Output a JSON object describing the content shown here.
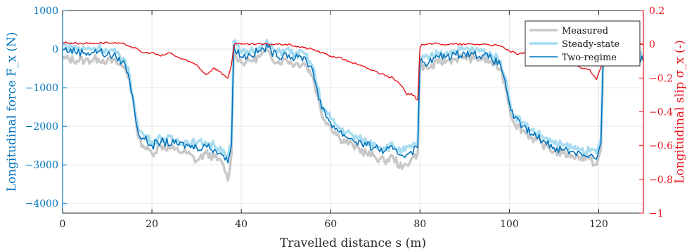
{
  "chart_data": {
    "type": "line",
    "xlabel": "Travelled distance s (m)",
    "ylabel_left": "Longitudinal force F_x (N)",
    "ylabel_right": "Longitudinal slip σ_x (-)",
    "xlim": [
      0,
      130
    ],
    "ylim_left": [
      -4250,
      1000
    ],
    "ylim_right": [
      -1,
      0.2
    ],
    "xticks": [
      0,
      20,
      40,
      60,
      80,
      100,
      120
    ],
    "yticks_left": [
      1000,
      0,
      -1000,
      -2000,
      -3000,
      -4000
    ],
    "yticks_right": [
      0.2,
      0,
      -0.2,
      -0.4,
      -0.6,
      -0.8,
      -1
    ],
    "grid": true,
    "legend_position": "top-right",
    "colors": {
      "measured": "#c8c8c8",
      "steady_state": "#a8dcf0",
      "two_regime": "#0072bd",
      "slip": "#e8141e",
      "left_axis": "#0072bd",
      "right_axis": "#e8141e"
    },
    "series": [
      {
        "name": "Measured",
        "axis": "left",
        "points": [
          [
            0,
            -250
          ],
          [
            5,
            -300
          ],
          [
            8,
            -250
          ],
          [
            10,
            -300
          ],
          [
            12,
            -350
          ],
          [
            14,
            -500
          ],
          [
            15,
            -800
          ],
          [
            16,
            -1500
          ],
          [
            17,
            -2300
          ],
          [
            18,
            -2500
          ],
          [
            20,
            -2700
          ],
          [
            22,
            -2500
          ],
          [
            25,
            -2600
          ],
          [
            28,
            -2700
          ],
          [
            30,
            -2900
          ],
          [
            32,
            -2700
          ],
          [
            34,
            -2800
          ],
          [
            36,
            -3000
          ],
          [
            37,
            -3400
          ],
          [
            37.8,
            -2700
          ],
          [
            38.3,
            -50
          ],
          [
            40,
            -350
          ],
          [
            42,
            -300
          ],
          [
            44,
            -200
          ],
          [
            46,
            -50
          ],
          [
            48,
            -350
          ],
          [
            50,
            -250
          ],
          [
            52,
            -400
          ],
          [
            54,
            -350
          ],
          [
            56,
            -700
          ],
          [
            57,
            -1200
          ],
          [
            58,
            -1700
          ],
          [
            60,
            -2000
          ],
          [
            62,
            -2300
          ],
          [
            65,
            -2500
          ],
          [
            68,
            -2700
          ],
          [
            70,
            -2800
          ],
          [
            72,
            -2900
          ],
          [
            74,
            -2800
          ],
          [
            76,
            -3100
          ],
          [
            78,
            -2850
          ],
          [
            79.5,
            -2700
          ],
          [
            80,
            -400
          ],
          [
            82,
            -500
          ],
          [
            84,
            -350
          ],
          [
            86,
            -300
          ],
          [
            88,
            -250
          ],
          [
            90,
            -200
          ],
          [
            92,
            -250
          ],
          [
            94,
            -250
          ],
          [
            96,
            -350
          ],
          [
            98,
            -500
          ],
          [
            99,
            -900
          ],
          [
            100,
            -1500
          ],
          [
            101,
            -1900
          ],
          [
            103,
            -2100
          ],
          [
            105,
            -2300
          ],
          [
            108,
            -2500
          ],
          [
            110,
            -2650
          ],
          [
            112,
            -2700
          ],
          [
            114,
            -2750
          ],
          [
            116,
            -2800
          ],
          [
            118,
            -2850
          ],
          [
            119.5,
            -3000
          ],
          [
            120.5,
            -2600
          ],
          [
            121,
            -400
          ],
          [
            124,
            -250
          ],
          [
            127,
            -300
          ],
          [
            130,
            -300
          ]
        ]
      },
      {
        "name": "Steady-state",
        "axis": "left",
        "points": [
          [
            0,
            100
          ],
          [
            5,
            0
          ],
          [
            8,
            50
          ],
          [
            10,
            -50
          ],
          [
            12,
            -100
          ],
          [
            14,
            -300
          ],
          [
            15,
            -700
          ],
          [
            16,
            -1400
          ],
          [
            17,
            -2100
          ],
          [
            18,
            -2200
          ],
          [
            20,
            -2400
          ],
          [
            22,
            -2300
          ],
          [
            25,
            -2350
          ],
          [
            28,
            -2400
          ],
          [
            30,
            -2450
          ],
          [
            32,
            -2400
          ],
          [
            34,
            -2500
          ],
          [
            36,
            -2600
          ],
          [
            37,
            -2800
          ],
          [
            37.8,
            -2400
          ],
          [
            38.3,
            200
          ],
          [
            40,
            -100
          ],
          [
            42,
            -50
          ],
          [
            44,
            50
          ],
          [
            46,
            150
          ],
          [
            48,
            -100
          ],
          [
            50,
            0
          ],
          [
            52,
            -150
          ],
          [
            54,
            -100
          ],
          [
            56,
            -450
          ],
          [
            57,
            -950
          ],
          [
            58,
            -1450
          ],
          [
            60,
            -1800
          ],
          [
            62,
            -2050
          ],
          [
            65,
            -2250
          ],
          [
            68,
            -2400
          ],
          [
            70,
            -2450
          ],
          [
            72,
            -2550
          ],
          [
            74,
            -2500
          ],
          [
            76,
            -2650
          ],
          [
            78,
            -2550
          ],
          [
            79.5,
            -2450
          ],
          [
            80,
            -200
          ],
          [
            82,
            -250
          ],
          [
            84,
            -100
          ],
          [
            86,
            -80
          ],
          [
            88,
            -50
          ],
          [
            90,
            0
          ],
          [
            92,
            -30
          ],
          [
            94,
            -50
          ],
          [
            96,
            -150
          ],
          [
            98,
            -300
          ],
          [
            99,
            -700
          ],
          [
            100,
            -1300
          ],
          [
            101,
            -1700
          ],
          [
            103,
            -1900
          ],
          [
            105,
            -2100
          ],
          [
            108,
            -2300
          ],
          [
            110,
            -2450
          ],
          [
            112,
            -2500
          ],
          [
            114,
            -2550
          ],
          [
            116,
            -2600
          ],
          [
            118,
            -2650
          ],
          [
            119.5,
            -2700
          ],
          [
            120.5,
            -2350
          ],
          [
            121,
            -150
          ],
          [
            124,
            -50
          ],
          [
            127,
            -100
          ],
          [
            130,
            -200
          ]
        ]
      },
      {
        "name": "Two-regime",
        "axis": "left",
        "points": [
          [
            0,
            0
          ],
          [
            5,
            -100
          ],
          [
            8,
            -50
          ],
          [
            10,
            -150
          ],
          [
            12,
            -200
          ],
          [
            14,
            -400
          ],
          [
            15,
            -800
          ],
          [
            16,
            -1500
          ],
          [
            17,
            -2200
          ],
          [
            18,
            -2300
          ],
          [
            20,
            -2500
          ],
          [
            22,
            -2400
          ],
          [
            25,
            -2450
          ],
          [
            28,
            -2500
          ],
          [
            30,
            -2550
          ],
          [
            32,
            -2500
          ],
          [
            34,
            -2600
          ],
          [
            36,
            -2750
          ],
          [
            37,
            -2950
          ],
          [
            37.8,
            -2500
          ],
          [
            38.3,
            100
          ],
          [
            40,
            -200
          ],
          [
            42,
            -150
          ],
          [
            44,
            -50
          ],
          [
            46,
            50
          ],
          [
            48,
            -200
          ],
          [
            50,
            -100
          ],
          [
            52,
            -250
          ],
          [
            54,
            -200
          ],
          [
            56,
            -550
          ],
          [
            57,
            -1050
          ],
          [
            58,
            -1550
          ],
          [
            60,
            -1900
          ],
          [
            62,
            -2150
          ],
          [
            65,
            -2350
          ],
          [
            68,
            -2500
          ],
          [
            70,
            -2550
          ],
          [
            72,
            -2650
          ],
          [
            74,
            -2600
          ],
          [
            76,
            -2750
          ],
          [
            78,
            -2650
          ],
          [
            79.5,
            -2550
          ],
          [
            80,
            -300
          ],
          [
            82,
            -350
          ],
          [
            84,
            -200
          ],
          [
            86,
            -180
          ],
          [
            88,
            -150
          ],
          [
            90,
            -100
          ],
          [
            92,
            -130
          ],
          [
            94,
            -150
          ],
          [
            96,
            -250
          ],
          [
            98,
            -400
          ],
          [
            99,
            -800
          ],
          [
            100,
            -1400
          ],
          [
            101,
            -1800
          ],
          [
            103,
            -2000
          ],
          [
            105,
            -2200
          ],
          [
            108,
            -2400
          ],
          [
            110,
            -2550
          ],
          [
            112,
            -2600
          ],
          [
            114,
            -2650
          ],
          [
            116,
            -2700
          ],
          [
            118,
            -2750
          ],
          [
            119.5,
            -2850
          ],
          [
            120.5,
            -2450
          ],
          [
            121,
            -250
          ],
          [
            124,
            -150
          ],
          [
            127,
            -200
          ],
          [
            130,
            -300
          ]
        ]
      },
      {
        "axis": "right",
        "points": [
          [
            0,
            0.01
          ],
          [
            5,
            0.005
          ],
          [
            10,
            0.01
          ],
          [
            14,
            0
          ],
          [
            16,
            -0.02
          ],
          [
            18,
            -0.05
          ],
          [
            20,
            -0.05
          ],
          [
            22,
            -0.07
          ],
          [
            24,
            -0.05
          ],
          [
            26,
            -0.08
          ],
          [
            28,
            -0.1
          ],
          [
            30,
            -0.12
          ],
          [
            32,
            -0.18
          ],
          [
            34,
            -0.14
          ],
          [
            36,
            -0.18
          ],
          [
            37,
            -0.2
          ],
          [
            37.8,
            -0.12
          ],
          [
            38.3,
            -0.02
          ],
          [
            38.6,
            0.005
          ],
          [
            40,
            0
          ],
          [
            45,
            0
          ],
          [
            50,
            0
          ],
          [
            52,
            -0.01
          ],
          [
            54,
            -0.02
          ],
          [
            56,
            -0.03
          ],
          [
            58,
            -0.05
          ],
          [
            60,
            -0.07
          ],
          [
            62,
            -0.08
          ],
          [
            64,
            -0.1
          ],
          [
            66,
            -0.12
          ],
          [
            68,
            -0.14
          ],
          [
            70,
            -0.16
          ],
          [
            72,
            -0.18
          ],
          [
            74,
            -0.2
          ],
          [
            76,
            -0.25
          ],
          [
            77,
            -0.3
          ],
          [
            78,
            -0.29
          ],
          [
            79.5,
            -0.33
          ],
          [
            80,
            -0.02
          ],
          [
            80.4,
            0
          ],
          [
            82,
            0.005
          ],
          [
            85,
            0
          ],
          [
            90,
            0
          ],
          [
            95,
            0
          ],
          [
            98,
            -0.01
          ],
          [
            100,
            -0.04
          ],
          [
            102,
            -0.06
          ],
          [
            104,
            -0.05
          ],
          [
            106,
            -0.07
          ],
          [
            108,
            -0.08
          ],
          [
            110,
            -0.11
          ],
          [
            112,
            -0.1
          ],
          [
            114,
            -0.12
          ],
          [
            116,
            -0.14
          ],
          [
            118,
            -0.15
          ],
          [
            119.5,
            -0.21
          ],
          [
            120.5,
            -0.14
          ],
          [
            121,
            0
          ],
          [
            124,
            0.01
          ],
          [
            127,
            0
          ],
          [
            130,
            0
          ]
        ]
      }
    ]
  }
}
